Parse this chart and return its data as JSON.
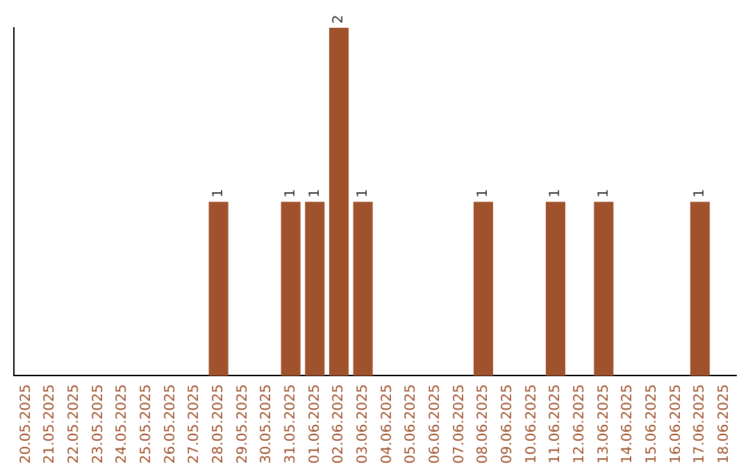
{
  "chart_data": {
    "type": "bar",
    "categories": [
      "20.05.2025",
      "21.05.2025",
      "22.05.2025",
      "23.05.2025",
      "24.05.2025",
      "25.05.2025",
      "26.05.2025",
      "27.05.2025",
      "28.05.2025",
      "29.05.2025",
      "30.05.2025",
      "31.05.2025",
      "01.06.2025",
      "02.06.2025",
      "03.06.2025",
      "04.06.2025",
      "05.06.2025",
      "06.06.2025",
      "07.06.2025",
      "08.06.2025",
      "09.06.2025",
      "10.06.2025",
      "11.06.2025",
      "12.06.2025",
      "13.06.2025",
      "14.06.2025",
      "15.06.2025",
      "16.06.2025",
      "17.06.2025",
      "18.06.2025"
    ],
    "values": [
      0,
      0,
      0,
      0,
      0,
      0,
      0,
      0,
      1,
      0,
      0,
      1,
      1,
      2,
      1,
      0,
      0,
      0,
      0,
      1,
      0,
      0,
      1,
      0,
      1,
      0,
      0,
      0,
      1,
      0
    ],
    "value_labels": [
      null,
      null,
      null,
      null,
      null,
      null,
      null,
      null,
      "1",
      null,
      null,
      "1",
      "1",
      "2",
      "1",
      null,
      null,
      null,
      null,
      "1",
      null,
      null,
      "1",
      null,
      "1",
      null,
      null,
      null,
      "1",
      null
    ],
    "color": "#a0522d",
    "grid": false,
    "legend": false,
    "tick_labels": "x"
  }
}
